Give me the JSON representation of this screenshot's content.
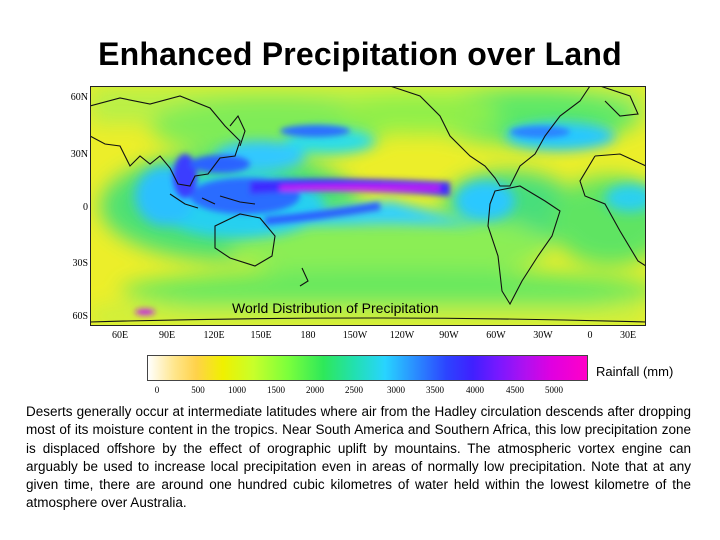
{
  "title": "Enhanced Precipitation over Land",
  "map": {
    "caption": "World Distribution of Precipitation",
    "lat_labels": [
      "60N",
      "30N",
      "0",
      "30S",
      "60S"
    ],
    "lon_labels": [
      "60E",
      "90E",
      "120E",
      "150E",
      "180",
      "150W",
      "120W",
      "90W",
      "60W",
      "30W",
      "0",
      "30E"
    ]
  },
  "colorbar": {
    "label": "Rainfall (mm)",
    "ticks": [
      "0",
      "500",
      "1000",
      "1500",
      "2000",
      "2500",
      "3000",
      "3500",
      "4000",
      "4500",
      "5000"
    ]
  },
  "paragraph": "Deserts generally occur at intermediate latitudes where air from the Hadley circulation descends after dropping most of its moisture content in the tropics. Near South America and Southern Africa, this low precipitation zone is displaced offshore by the effect of orographic uplift by mountains. The atmospheric vortex engine can arguably be used to increase local precipitation even in areas of normally low precipitation. Note that at any given time, there are around one hundred cubic kilometres of water held within the lowest kilometre of the atmosphere over Australia."
}
